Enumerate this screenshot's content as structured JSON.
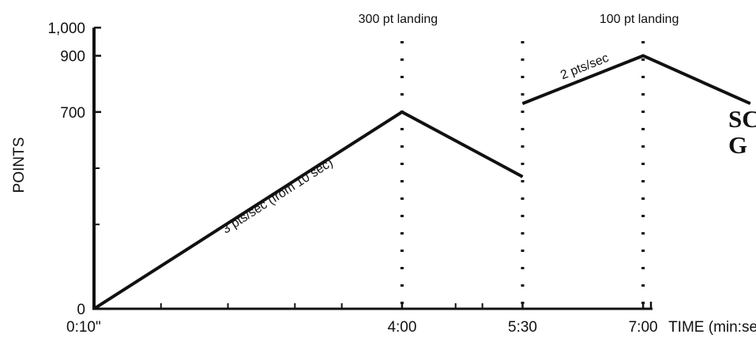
{
  "chart_data": {
    "type": "line",
    "title": "",
    "xlabel": "TIME (min:sec)",
    "ylabel": "POINTS",
    "xlim": [
      10,
      440
    ],
    "ylim": [
      0,
      1000
    ],
    "x_ticks": [
      {
        "x": 10,
        "label": "0:10\""
      },
      {
        "x": 240,
        "label": "4:00"
      },
      {
        "x": 330,
        "label": "5:30"
      },
      {
        "x": 420,
        "label": "7:00"
      }
    ],
    "x_minor_ticks": [
      60,
      110,
      160,
      195,
      280,
      300
    ],
    "y_ticks": [
      {
        "y": 0,
        "label": "0"
      },
      {
        "y": 700,
        "label": "700"
      },
      {
        "y": 900,
        "label": "900"
      },
      {
        "y": 1000,
        "label": "1,000"
      }
    ],
    "y_minor_ticks": [
      300,
      500
    ],
    "series": [
      {
        "name": "",
        "points": [
          [
            10,
            0
          ],
          [
            240,
            700
          ],
          [
            330,
            470
          ]
        ]
      },
      {
        "name": "",
        "points": [
          [
            330,
            730
          ],
          [
            420,
            900
          ],
          [
            500,
            730
          ]
        ]
      }
    ],
    "event_lines": [
      {
        "x": 240,
        "label": "300 pt landing"
      },
      {
        "x": 330,
        "label": ""
      },
      {
        "x": 420,
        "label": "100 pt landing"
      }
    ],
    "annotations": [
      {
        "text": "3 pts/sec (from 10 sec)"
      },
      {
        "text": "2 pts/sec"
      }
    ],
    "line_color": "#111111"
  },
  "side_text": [
    "SC",
    "G"
  ]
}
